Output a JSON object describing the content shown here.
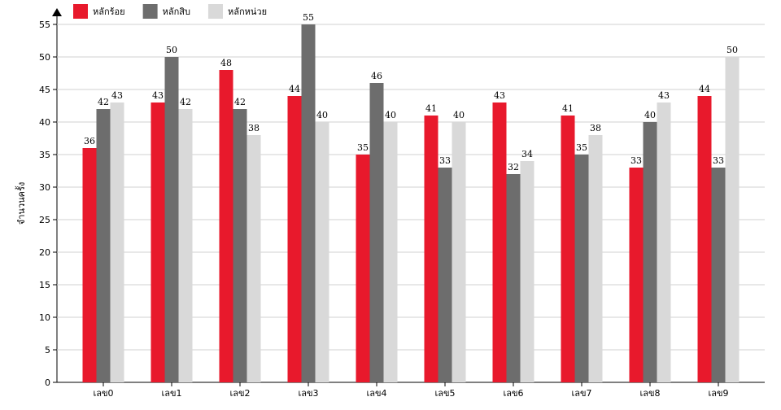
{
  "chart_data": {
    "type": "bar",
    "y_label": "จำนวนครั้ง",
    "categories": [
      "เลข0",
      "เลข1",
      "เลข2",
      "เลข3",
      "เลข4",
      "เลข5",
      "เลข6",
      "เลข7",
      "เลข8",
      "เลข9"
    ],
    "series": [
      {
        "name": "หลักร้อย",
        "color": "#e8192c",
        "values": [
          36,
          43,
          48,
          44,
          35,
          41,
          43,
          41,
          33,
          44
        ]
      },
      {
        "name": "หลักสิบ",
        "color": "#6d6d6d",
        "values": [
          42,
          50,
          42,
          55,
          46,
          33,
          32,
          35,
          40,
          33
        ]
      },
      {
        "name": "หลักหน่วย",
        "color": "#d9d9d9",
        "values": [
          43,
          42,
          38,
          40,
          40,
          40,
          34,
          38,
          43,
          50
        ]
      }
    ],
    "ylim": [
      0,
      55
    ],
    "yticks": [
      0,
      5,
      10,
      15,
      20,
      25,
      30,
      35,
      40,
      45,
      50,
      55
    ],
    "grid": true
  }
}
